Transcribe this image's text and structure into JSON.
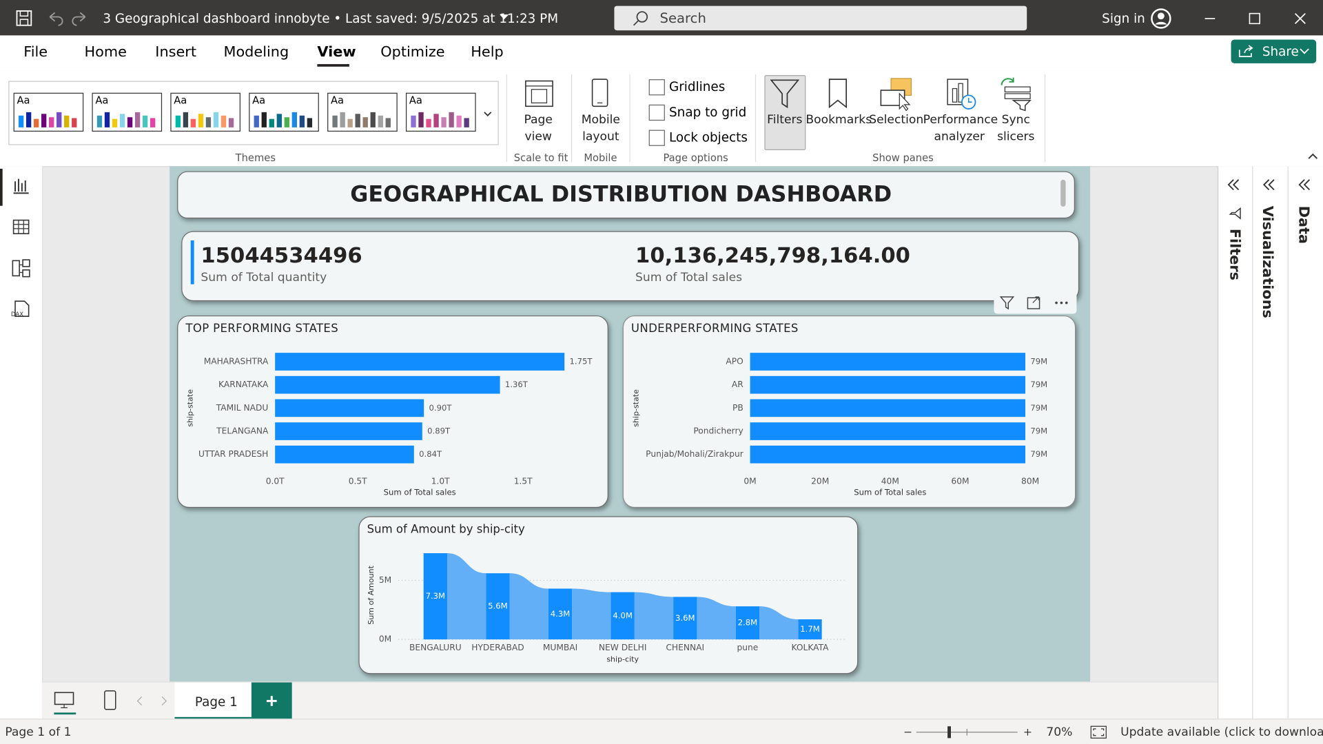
{
  "title_bar": {
    "document": "3 Geographical dashboard innobyte • Last saved: 9/5/2025 at 11:23 PM",
    "search": "Search",
    "sign_in": "Sign in"
  },
  "menu": {
    "tabs": [
      "File",
      "Home",
      "Insert",
      "Modeling",
      "View",
      "Optimize",
      "Help"
    ],
    "share": "Share"
  },
  "ribbon": {
    "theme_sample": "Aa",
    "themes": "Themes",
    "page_view": "Page view",
    "scale_to_fit": "Scale to fit",
    "mobile_layout": "Mobile layout",
    "mobile": "Mobile",
    "page_options": {
      "checkboxes": [
        "Gridlines",
        "Snap to grid",
        "Lock objects"
      ],
      "label": "Page options"
    },
    "show_panes": {
      "buttons": [
        "Filters",
        "Bookmarks",
        "Selection",
        "Performance analyzer",
        "Sync slicers"
      ],
      "label": "Show panes"
    }
  },
  "report": {
    "title": "GEOGRAPHICAL DISTRIBUTION DASHBOARD",
    "cards": [
      {
        "value": "15044534496",
        "label": "Sum of Total quantity"
      },
      {
        "value": "10,136,245,798,164.00",
        "label": "Sum of Total sales"
      }
    ]
  },
  "chart_data": [
    {
      "type": "bar",
      "orientation": "horizontal",
      "title": "TOP PERFORMING STATES",
      "categories": [
        "MAHARASHTRA",
        "KARNATAKA",
        "TAMIL NADU",
        "TELANGANA",
        "UTTAR PRADESH"
      ],
      "values": [
        1750000000000,
        1360000000000,
        900000000000,
        890000000000,
        840000000000
      ],
      "value_labels": [
        "1.75T",
        "1.36T",
        "0.90T",
        "0.89T",
        "0.84T"
      ],
      "color": "#118dff",
      "xlim": [
        0,
        1750000000000
      ],
      "xticks": [
        {
          "value": 0,
          "label": "0.0T"
        },
        {
          "value": 500000000000,
          "label": "0.5T"
        },
        {
          "value": 1000000000000,
          "label": "1.0T"
        },
        {
          "value": 1500000000000,
          "label": "1.5T"
        }
      ],
      "x_label": "Sum of Total sales",
      "y_label": "ship-state"
    },
    {
      "type": "bar",
      "orientation": "horizontal",
      "title": "UNDERPERFORMING STATES",
      "categories": [
        "APO",
        "AR",
        "PB",
        "Pondicherry",
        "Punjab/Mohali/Zirakpur"
      ],
      "values": [
        78600000,
        78600000,
        78600000,
        78600000,
        78600000
      ],
      "value_labels": [
        "79M",
        "79M",
        "79M",
        "79M",
        "79M"
      ],
      "color": "#118dff",
      "xlim": [
        0,
        80000000
      ],
      "xticks": [
        {
          "value": 0,
          "label": "0M"
        },
        {
          "value": 20000000,
          "label": "20M"
        },
        {
          "value": 40000000,
          "label": "40M"
        },
        {
          "value": 60000000,
          "label": "60M"
        },
        {
          "value": 80000000,
          "label": "80M"
        }
      ],
      "x_label": "Sum of Total sales",
      "y_label": "ship-state"
    },
    {
      "type": "ribbon",
      "title": "Sum of Amount by ship-city",
      "categories": [
        "BENGALURU",
        "HYDERABAD",
        "MUMBAI",
        "NEW DELHI",
        "CHENNAI",
        "pune",
        "KOLKATA"
      ],
      "values": [
        7300000,
        5600000,
        4300000,
        4000000,
        3600000,
        2800000,
        1700000
      ],
      "value_labels": [
        "7.3M",
        "5.6M",
        "4.3M",
        "4.0M",
        "3.6M",
        "2.8M",
        "1.7M"
      ],
      "color": "#118dff",
      "ribbon_color": "#62aef7",
      "ylim": [
        0,
        7500000
      ],
      "yticks": [
        {
          "value": 0,
          "label": "0M"
        },
        {
          "value": 5000000,
          "label": "5M"
        }
      ],
      "grid": true,
      "x_label": "ship-city",
      "y_label": "Sum of Amount"
    }
  ],
  "panes": [
    "Filters",
    "Visualizations",
    "Data"
  ],
  "page_tabs": [
    "Page 1"
  ],
  "status_bar": {
    "page": "Page 1 of 1",
    "zoom": "70%",
    "update": "Update available (click to download)"
  }
}
